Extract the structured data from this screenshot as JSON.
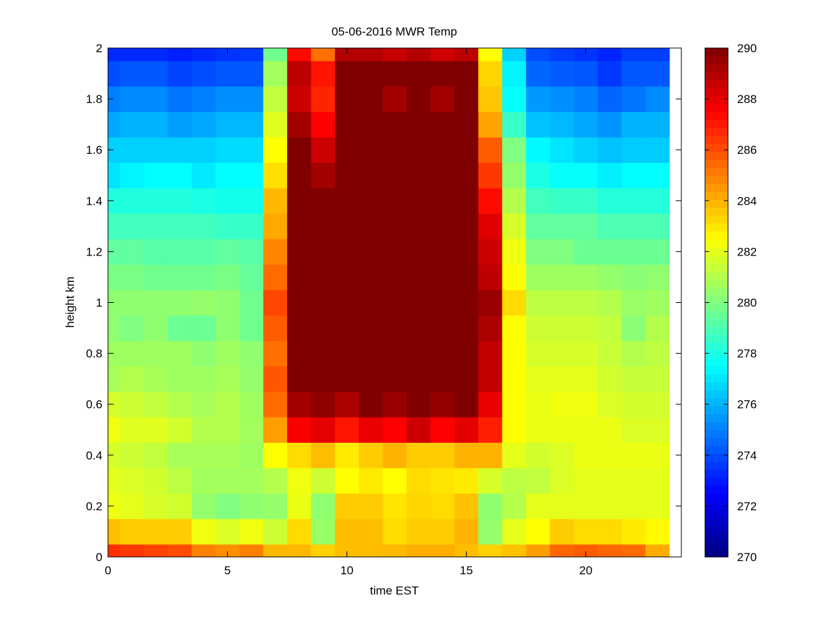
{
  "chart_data": {
    "type": "heatmap",
    "title": "05-06-2016 MWR Temp",
    "xlabel": "time EST",
    "ylabel": "height km",
    "xlim": [
      0,
      24
    ],
    "ylim": [
      0,
      2
    ],
    "xticks": [
      0,
      5,
      10,
      15,
      20
    ],
    "yticks": [
      0,
      0.2,
      0.4,
      0.6,
      0.8,
      1,
      1.2,
      1.4,
      1.6,
      1.8,
      2
    ],
    "colormap": "jet",
    "clim": [
      270,
      290
    ],
    "colorbar_ticks": [
      270,
      272,
      274,
      276,
      278,
      280,
      282,
      284,
      286,
      288,
      290
    ],
    "colorbar_position": "right",
    "x": [
      0,
      1,
      2,
      3,
      4,
      5,
      6,
      7,
      8,
      9,
      10,
      11,
      12,
      13,
      14,
      15,
      16,
      17,
      18,
      19,
      20,
      21,
      22,
      23
    ],
    "y": [
      0,
      0.1,
      0.2,
      0.3,
      0.4,
      0.5,
      0.6,
      0.7,
      0.8,
      0.9,
      1.0,
      1.1,
      1.2,
      1.3,
      1.4,
      1.5,
      1.6,
      1.7,
      1.8,
      1.9,
      2.0
    ],
    "z": [
      [
        286.6,
        286.4,
        286.2,
        286.0,
        285.0,
        284.7,
        285.0,
        283.9,
        283.9,
        283.4,
        283.8,
        283.8,
        283.9,
        284.1,
        284.1,
        283.8,
        283.4,
        283.7,
        284.4,
        285.5,
        285.7,
        285.5,
        285.4,
        284.1
      ],
      [
        283.8,
        283.5,
        283.5,
        283.5,
        282.2,
        281.8,
        282.2,
        281.5,
        283.2,
        280.5,
        283.8,
        283.8,
        283.2,
        283.5,
        283.5,
        284.0,
        280.4,
        282.0,
        282.5,
        283.5,
        283.2,
        283.2,
        282.9,
        282.6
      ],
      [
        282.2,
        282.0,
        281.7,
        281.6,
        280.4,
        280.0,
        280.3,
        280.4,
        282.1,
        280.3,
        283.5,
        283.5,
        283.0,
        283.3,
        283.2,
        283.7,
        280.3,
        281.0,
        282.0,
        282.0,
        282.0,
        282.0,
        282.0,
        282.0
      ],
      [
        282.0,
        281.8,
        281.6,
        281.2,
        280.7,
        280.7,
        280.7,
        281.0,
        282.2,
        281.5,
        282.5,
        282.9,
        282.5,
        283.2,
        283.0,
        282.9,
        281.7,
        281.2,
        281.3,
        281.8,
        282.0,
        282.0,
        282.0,
        282.0
      ],
      [
        281.7,
        281.5,
        281.3,
        280.8,
        280.8,
        280.8,
        280.6,
        282.5,
        283.2,
        283.8,
        282.9,
        283.5,
        284.0,
        283.5,
        283.5,
        284.0,
        284.0,
        282.0,
        281.6,
        281.8,
        282.1,
        282.1,
        282.1,
        282.1
      ],
      [
        282.2,
        281.9,
        281.9,
        281.6,
        281.0,
        281.0,
        280.7,
        284.4,
        287.6,
        288.0,
        287.1,
        287.9,
        287.5,
        288.5,
        287.5,
        288.0,
        286.9,
        282.5,
        282.1,
        282.1,
        282.1,
        282.1,
        281.8,
        281.8
      ],
      [
        281.7,
        281.5,
        281.3,
        281.0,
        280.8,
        281.0,
        280.6,
        285.4,
        289.3,
        289.7,
        289.1,
        290.0,
        289.5,
        290.0,
        289.6,
        290.0,
        287.9,
        282.5,
        282.1,
        282.2,
        282.2,
        281.8,
        281.6,
        281.6
      ],
      [
        280.8,
        281.0,
        280.8,
        280.6,
        280.6,
        280.8,
        280.4,
        285.8,
        290.0,
        290.0,
        290.0,
        290.0,
        290.0,
        290.0,
        290.0,
        290.0,
        288.7,
        282.5,
        282.0,
        282.0,
        282.0,
        281.6,
        281.4,
        281.4
      ],
      [
        280.6,
        280.6,
        280.6,
        280.6,
        280.3,
        280.6,
        280.3,
        285.3,
        290.0,
        290.0,
        290.0,
        290.0,
        290.0,
        290.0,
        290.0,
        290.0,
        288.7,
        282.5,
        281.7,
        281.7,
        281.7,
        281.4,
        281.0,
        281.2
      ],
      [
        280.3,
        280.0,
        280.3,
        279.6,
        279.6,
        280.3,
        279.7,
        285.7,
        290.0,
        290.0,
        290.0,
        290.0,
        290.0,
        290.0,
        290.0,
        290.0,
        289.1,
        282.5,
        281.5,
        281.5,
        281.5,
        281.3,
        280.2,
        281.0
      ],
      [
        280.3,
        280.3,
        280.3,
        280.3,
        280.4,
        280.3,
        279.7,
        286.1,
        290.0,
        290.0,
        290.0,
        290.0,
        290.0,
        290.0,
        290.0,
        290.0,
        289.5,
        283.2,
        281.2,
        281.2,
        281.2,
        281.0,
        280.5,
        280.6
      ],
      [
        279.9,
        279.9,
        279.7,
        279.7,
        279.7,
        279.9,
        279.5,
        285.4,
        290.0,
        290.0,
        290.0,
        290.0,
        290.0,
        290.0,
        290.0,
        290.0,
        288.8,
        282.5,
        280.6,
        280.6,
        280.6,
        280.4,
        280.2,
        280.3
      ],
      [
        279.4,
        279.4,
        279.2,
        279.2,
        279.2,
        279.4,
        279.2,
        284.9,
        290.0,
        290.0,
        290.0,
        290.0,
        290.0,
        290.0,
        290.0,
        290.0,
        288.5,
        282.2,
        280.0,
        280.0,
        279.6,
        279.6,
        279.6,
        279.6
      ],
      [
        278.8,
        278.8,
        278.8,
        278.8,
        278.8,
        278.6,
        278.6,
        284.2,
        290.0,
        290.0,
        290.0,
        290.0,
        290.0,
        290.0,
        290.0,
        290.0,
        288.1,
        281.7,
        279.4,
        279.4,
        279.4,
        279.0,
        279.0,
        279.0
      ],
      [
        278.1,
        278.1,
        278.1,
        278.1,
        278.0,
        277.9,
        277.9,
        283.9,
        290.0,
        290.0,
        290.0,
        290.0,
        290.0,
        290.0,
        290.0,
        290.0,
        287.3,
        281.0,
        278.8,
        278.6,
        278.6,
        278.2,
        278.2,
        278.2
      ],
      [
        277.0,
        277.3,
        277.5,
        277.5,
        277.1,
        277.5,
        277.5,
        283.1,
        290.0,
        289.3,
        290.0,
        290.0,
        290.0,
        290.0,
        290.0,
        290.0,
        286.4,
        280.4,
        278.0,
        277.6,
        277.6,
        277.2,
        277.5,
        277.5
      ],
      [
        276.6,
        276.6,
        276.6,
        276.6,
        276.6,
        276.8,
        276.8,
        282.5,
        290.0,
        288.5,
        290.0,
        290.0,
        290.0,
        290.0,
        290.0,
        290.0,
        285.7,
        280.0,
        277.4,
        277.0,
        276.6,
        276.3,
        276.5,
        276.5
      ],
      [
        275.8,
        276.0,
        276.0,
        275.6,
        275.8,
        276.1,
        276.1,
        281.9,
        289.3,
        287.5,
        290.0,
        290.0,
        290.0,
        290.0,
        290.0,
        290.0,
        284.3,
        278.6,
        276.3,
        276.1,
        275.8,
        275.4,
        276.0,
        276.0
      ],
      [
        275.0,
        275.2,
        275.2,
        274.8,
        275.0,
        275.3,
        275.3,
        281.3,
        288.5,
        286.8,
        290.0,
        290.0,
        289.3,
        290.0,
        289.3,
        290.0,
        283.6,
        277.6,
        275.5,
        275.3,
        275.0,
        274.5,
        274.8,
        275.2
      ],
      [
        274.0,
        274.2,
        274.2,
        273.8,
        274.0,
        274.2,
        274.2,
        280.7,
        288.8,
        287.1,
        290.0,
        290.0,
        290.0,
        290.0,
        290.0,
        290.0,
        283.3,
        277.3,
        274.5,
        274.3,
        274.2,
        273.6,
        274.2,
        274.2
      ],
      [
        273.3,
        273.3,
        273.3,
        273.1,
        273.3,
        273.5,
        273.6,
        279.7,
        287.3,
        285.3,
        289.0,
        289.0,
        288.6,
        289.0,
        288.4,
        288.8,
        282.5,
        276.6,
        274.0,
        273.7,
        273.5,
        273.2,
        273.7,
        273.7
      ]
    ]
  }
}
